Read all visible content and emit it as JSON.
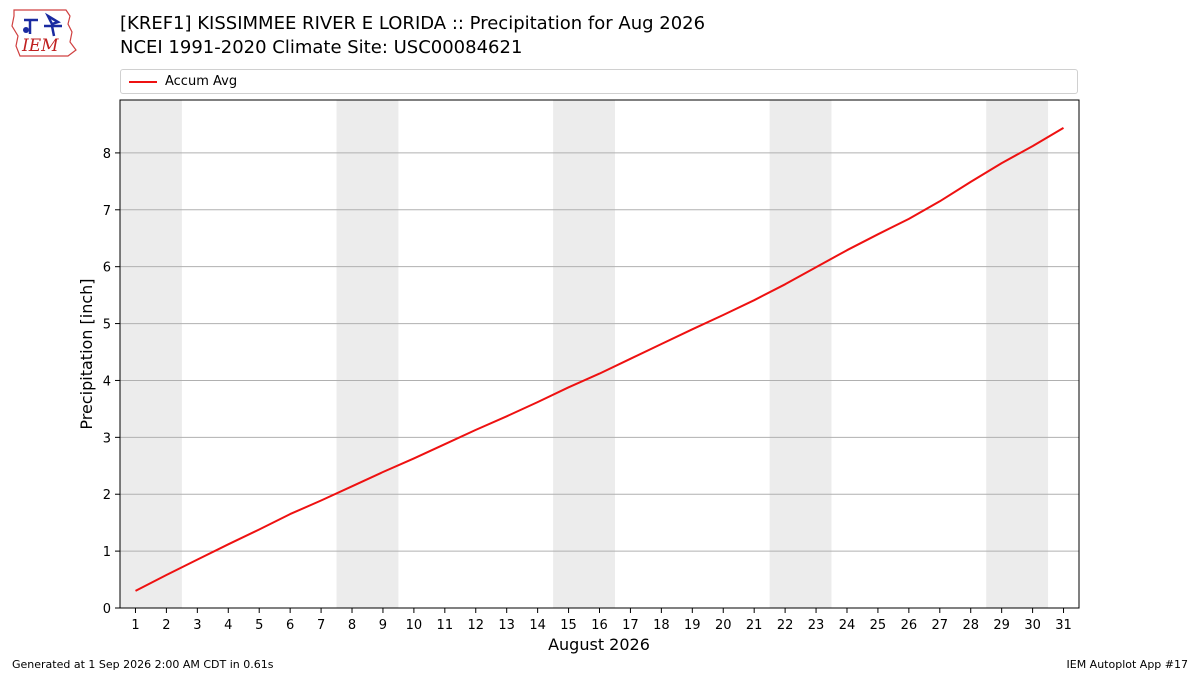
{
  "header": {
    "title_line1": "[KREF1] KISSIMMEE RIVER E LORIDA :: Precipitation for Aug 2026",
    "title_line2": "NCEI 1991-2020 Climate Site: USC00084621"
  },
  "logo": {
    "text": "IEM",
    "icon": "iem-logo-icon"
  },
  "footer": {
    "left": "Generated at 1 Sep 2026 2:00 AM CDT in 0.61s",
    "right": "IEM Autoplot App #17"
  },
  "colors": {
    "line": "#ee1111",
    "weekend_band": "#ececec",
    "grid": "#b0b0b0"
  },
  "chart_data": {
    "type": "line",
    "xlabel": "August 2026",
    "ylabel": "Precipitation [inch]",
    "x": [
      1,
      2,
      3,
      4,
      5,
      6,
      7,
      8,
      9,
      10,
      11,
      12,
      13,
      14,
      15,
      16,
      17,
      18,
      19,
      20,
      21,
      22,
      23,
      24,
      25,
      26,
      27,
      28,
      29,
      30,
      31
    ],
    "xlim": [
      0.5,
      31.5
    ],
    "ylim": [
      0,
      8.93
    ],
    "yticks": [
      0,
      1,
      2,
      3,
      4,
      5,
      6,
      7,
      8
    ],
    "grid": "horizontal",
    "legend_position": "top",
    "weekend_bands": [
      [
        1,
        2
      ],
      [
        8,
        9
      ],
      [
        15,
        16
      ],
      [
        22,
        23
      ],
      [
        29,
        30
      ]
    ],
    "series": [
      {
        "name": "Accum Avg",
        "color": "#ee1111",
        "values": [
          0.3,
          0.58,
          0.85,
          1.12,
          1.38,
          1.65,
          1.89,
          2.14,
          2.39,
          2.63,
          2.88,
          3.13,
          3.37,
          3.62,
          3.88,
          4.12,
          4.38,
          4.64,
          4.9,
          5.15,
          5.41,
          5.69,
          5.99,
          6.29,
          6.57,
          6.84,
          7.15,
          7.49,
          7.82,
          8.12,
          8.44
        ]
      }
    ]
  }
}
